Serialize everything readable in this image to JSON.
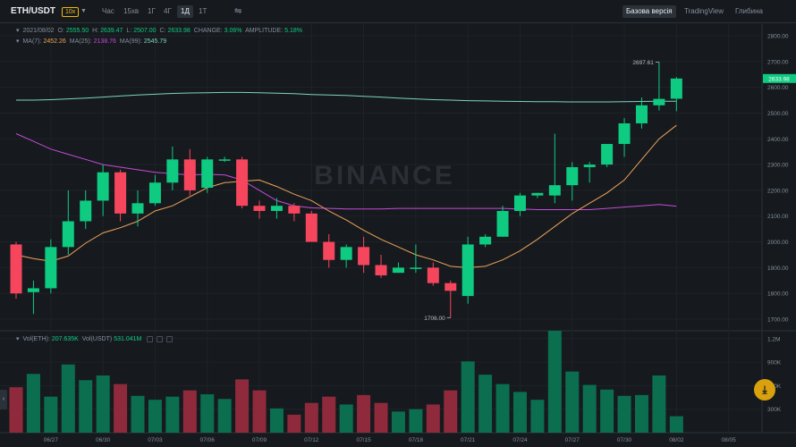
{
  "toolbar": {
    "pair": "ETH/USDT",
    "leverage": "10x",
    "intervals": [
      "Час",
      "15хв",
      "1Г",
      "4Г",
      "1Д",
      "1Т"
    ],
    "active_interval": "1Д",
    "views": [
      "Базова версія",
      "TradingView",
      "Глибина"
    ],
    "active_view": "Базова версія"
  },
  "legend": {
    "date": "2021/08/02",
    "o_label": "O:",
    "o": "2555.50",
    "h_label": "H:",
    "h": "2639.47",
    "l_label": "L:",
    "l": "2507.00",
    "c_label": "C:",
    "c": "2633.98",
    "change_label": "CHANGE:",
    "change": "3.06%",
    "amp_label": "AMPLITUDE:",
    "amp": "5.18%",
    "ma7_label": "MA(7):",
    "ma7": "2452.26",
    "ma25_label": "MA(25):",
    "ma25": "2138.76",
    "ma99_label": "MA(99):",
    "ma99": "2545.79",
    "vol_eth_label": "Vol(ETH):",
    "vol_eth": "207.635K",
    "vol_usdt_label": "Vol(USDT)",
    "vol_usdt": "531.041M"
  },
  "watermark": "BINANCE",
  "colors": {
    "up": "#0ecb81",
    "down": "#f6465d",
    "ma7": "#f0a35a",
    "ma25": "#c64bd8",
    "ma99": "#7dd3c0",
    "accent": "#f0b90b"
  },
  "chart_data": {
    "type": "candlestick",
    "price_axis": {
      "ticks": [
        1700,
        1800,
        1900,
        2000,
        2100,
        2200,
        2300,
        2400,
        2500,
        2600,
        2700,
        2800
      ],
      "min": 1655,
      "max": 2845
    },
    "volume_axis": {
      "ticks": [
        "300K",
        "600K",
        "900K",
        "1.2M"
      ],
      "max": 1300000
    },
    "date_ticks": [
      "06/27",
      "06/30",
      "07/03",
      "07/06",
      "07/09",
      "07/12",
      "07/15",
      "07/18",
      "07/21",
      "07/24",
      "07/27",
      "07/30",
      "08/02",
      "08/05"
    ],
    "candles": [
      {
        "o": 1990,
        "h": 2000,
        "l": 1780,
        "c": 1800,
        "v": 580000
      },
      {
        "o": 1805,
        "h": 1850,
        "l": 1720,
        "c": 1820,
        "v": 750000
      },
      {
        "o": 1820,
        "h": 2010,
        "l": 1800,
        "c": 1980,
        "v": 460000
      },
      {
        "o": 1980,
        "h": 2200,
        "l": 1950,
        "c": 2080,
        "v": 870000
      },
      {
        "o": 2080,
        "h": 2200,
        "l": 2050,
        "c": 2160,
        "v": 670000
      },
      {
        "o": 2160,
        "h": 2300,
        "l": 2100,
        "c": 2270,
        "v": 730000
      },
      {
        "o": 2270,
        "h": 2280,
        "l": 2080,
        "c": 2110,
        "v": 620000
      },
      {
        "o": 2110,
        "h": 2200,
        "l": 2060,
        "c": 2150,
        "v": 470000
      },
      {
        "o": 2150,
        "h": 2260,
        "l": 2140,
        "c": 2230,
        "v": 420000
      },
      {
        "o": 2230,
        "h": 2370,
        "l": 2200,
        "c": 2320,
        "v": 460000
      },
      {
        "o": 2320,
        "h": 2360,
        "l": 2180,
        "c": 2200,
        "v": 540000
      },
      {
        "o": 2210,
        "h": 2330,
        "l": 2190,
        "c": 2320,
        "v": 490000
      },
      {
        "o": 2320,
        "h": 2330,
        "l": 2310,
        "c": 2320,
        "v": 430000
      },
      {
        "o": 2320,
        "h": 2330,
        "l": 2130,
        "c": 2140,
        "v": 680000
      },
      {
        "o": 2140,
        "h": 2160,
        "l": 2090,
        "c": 2120,
        "v": 540000
      },
      {
        "o": 2120,
        "h": 2170,
        "l": 2090,
        "c": 2140,
        "v": 310000
      },
      {
        "o": 2140,
        "h": 2150,
        "l": 2080,
        "c": 2110,
        "v": 230000
      },
      {
        "o": 2110,
        "h": 2120,
        "l": 2000,
        "c": 2000,
        "v": 380000
      },
      {
        "o": 2000,
        "h": 2030,
        "l": 1900,
        "c": 1930,
        "v": 460000
      },
      {
        "o": 1930,
        "h": 1990,
        "l": 1900,
        "c": 1980,
        "v": 360000
      },
      {
        "o": 1980,
        "h": 2020,
        "l": 1880,
        "c": 1910,
        "v": 480000
      },
      {
        "o": 1910,
        "h": 1950,
        "l": 1860,
        "c": 1870,
        "v": 380000
      },
      {
        "o": 1880,
        "h": 1920,
        "l": 1880,
        "c": 1900,
        "v": 270000
      },
      {
        "o": 1900,
        "h": 1990,
        "l": 1880,
        "c": 1900,
        "v": 300000
      },
      {
        "o": 1900,
        "h": 1920,
        "l": 1830,
        "c": 1840,
        "v": 360000
      },
      {
        "o": 1840,
        "h": 1850,
        "l": 1706,
        "c": 1810,
        "v": 540000
      },
      {
        "o": 1790,
        "h": 2020,
        "l": 1760,
        "c": 1990,
        "v": 910000
      },
      {
        "o": 1990,
        "h": 2030,
        "l": 1980,
        "c": 2020,
        "v": 740000
      },
      {
        "o": 2020,
        "h": 2140,
        "l": 2020,
        "c": 2120,
        "v": 620000
      },
      {
        "o": 2120,
        "h": 2190,
        "l": 2100,
        "c": 2180,
        "v": 520000
      },
      {
        "o": 2180,
        "h": 2190,
        "l": 2170,
        "c": 2190,
        "v": 420000
      },
      {
        "o": 2180,
        "h": 2420,
        "l": 2150,
        "c": 2220,
        "v": 1300000
      },
      {
        "o": 2220,
        "h": 2310,
        "l": 2160,
        "c": 2290,
        "v": 780000
      },
      {
        "o": 2290,
        "h": 2310,
        "l": 2230,
        "c": 2300,
        "v": 610000
      },
      {
        "o": 2300,
        "h": 2380,
        "l": 2290,
        "c": 2380,
        "v": 550000
      },
      {
        "o": 2380,
        "h": 2480,
        "l": 2330,
        "c": 2460,
        "v": 470000
      },
      {
        "o": 2460,
        "h": 2560,
        "l": 2440,
        "c": 2530,
        "v": 480000
      },
      {
        "o": 2530,
        "h": 2697.61,
        "l": 2510,
        "c": 2555,
        "v": 730000
      },
      {
        "o": 2555.5,
        "h": 2639.47,
        "l": 2507,
        "c": 2633.98,
        "v": 210000
      }
    ],
    "ma7": [
      1950,
      1935,
      1925,
      1945,
      1995,
      2035,
      2055,
      2080,
      2120,
      2140,
      2175,
      2210,
      2230,
      2235,
      2240,
      2215,
      2185,
      2160,
      2120,
      2085,
      2045,
      2010,
      1980,
      1950,
      1930,
      1905,
      1900,
      1905,
      1930,
      1965,
      2010,
      2060,
      2110,
      2150,
      2190,
      2240,
      2320,
      2400,
      2452.26
    ],
    "ma25": [
      2420,
      2390,
      2360,
      2340,
      2320,
      2300,
      2290,
      2280,
      2270,
      2265,
      2260,
      2262,
      2260,
      2240,
      2200,
      2160,
      2140,
      2132,
      2130,
      2128,
      2128,
      2128,
      2130,
      2130,
      2130,
      2130,
      2130,
      2130,
      2130,
      2128,
      2125,
      2125,
      2125,
      2125,
      2130,
      2135,
      2140,
      2145,
      2138.76
    ],
    "ma99": [
      2550,
      2550,
      2552,
      2555,
      2558,
      2562,
      2566,
      2570,
      2573,
      2576,
      2578,
      2579,
      2580,
      2580,
      2579,
      2577,
      2575,
      2572,
      2570,
      2568,
      2565,
      2562,
      2558,
      2555,
      2552,
      2550,
      2548,
      2547,
      2546,
      2545,
      2544,
      2544,
      2543,
      2543,
      2543,
      2544,
      2545,
      2546,
      2545.79
    ],
    "last_price": "2633.98",
    "high_label": "2697.61",
    "low_label": "1706.00"
  }
}
